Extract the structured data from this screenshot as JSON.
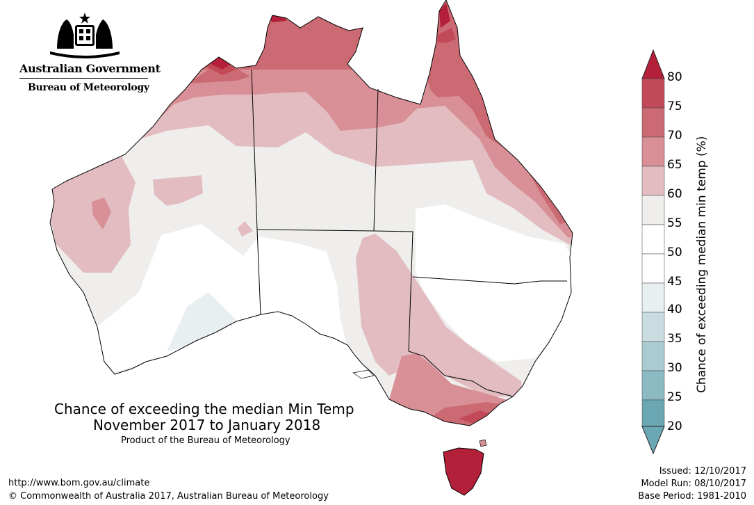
{
  "header": {
    "government": "Australian Government",
    "agency": "Bureau of Meteorology"
  },
  "map": {
    "title_line1": "Chance of exceeding the median Min Temp",
    "title_line2": "November 2017 to January 2018",
    "subtitle": "Product of the Bureau of Meteorology"
  },
  "legend": {
    "label": "Chance of exceeding median min temp (%)",
    "ticks": [
      "80",
      "75",
      "70",
      "65",
      "60",
      "55",
      "50",
      "45",
      "40",
      "35",
      "30",
      "25",
      "20"
    ],
    "colors": {
      "80+": "#b41f3a",
      "75-80": "#c24958",
      "70-75": "#cc6a73",
      "65-70": "#d88f95",
      "60-65": "#e2bcc0",
      "55-60": "#efeeec",
      "45-55": "#ffffff",
      "40-45": "#e7eff1",
      "35-40": "#c9dde1",
      "30-35": "#aacbd1",
      "25-30": "#8bbac3",
      "20-25": "#6aa7b2"
    }
  },
  "footer": {
    "url": "http://www.bom.gov.au/climate",
    "copyright": "© Commonwealth of Australia 2017, Australian Bureau of Meteorology",
    "issued": "Issued: 12/10/2017",
    "model_run": "Model Run: 08/10/2017",
    "base_period": "Base Period: 1981-2010"
  }
}
